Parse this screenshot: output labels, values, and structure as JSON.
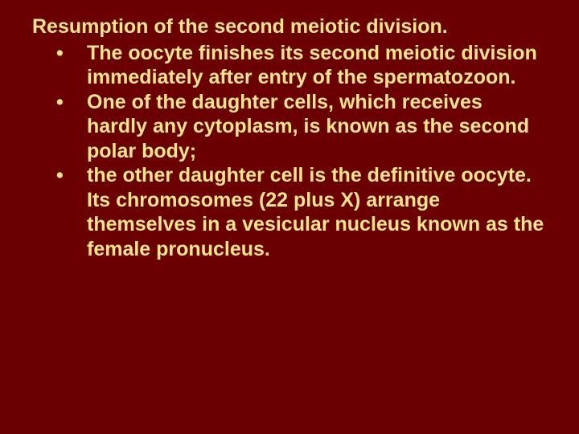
{
  "slide": {
    "background_color": "#6b0000",
    "text_color": "#f5e48a",
    "font_family": "Verdana, Geneva, sans-serif",
    "font_size_pt": 19,
    "font_weight": 900,
    "line_height": 1.22,
    "heading": "Resumption of the second meiotic division.",
    "bullets": [
      "The oocyte finishes its second meiotic division immediately after entry of the spermatozoon.",
      "One of the daughter cells, which receives hardly any cytoplasm, is known as the second polar body;",
      "the other daughter cell is the definitive oocyte. Its chromosomes (22 plus X) arrange themselves in a vesicular nucleus known as the female pronucleus."
    ],
    "bullet_marker": "•"
  }
}
